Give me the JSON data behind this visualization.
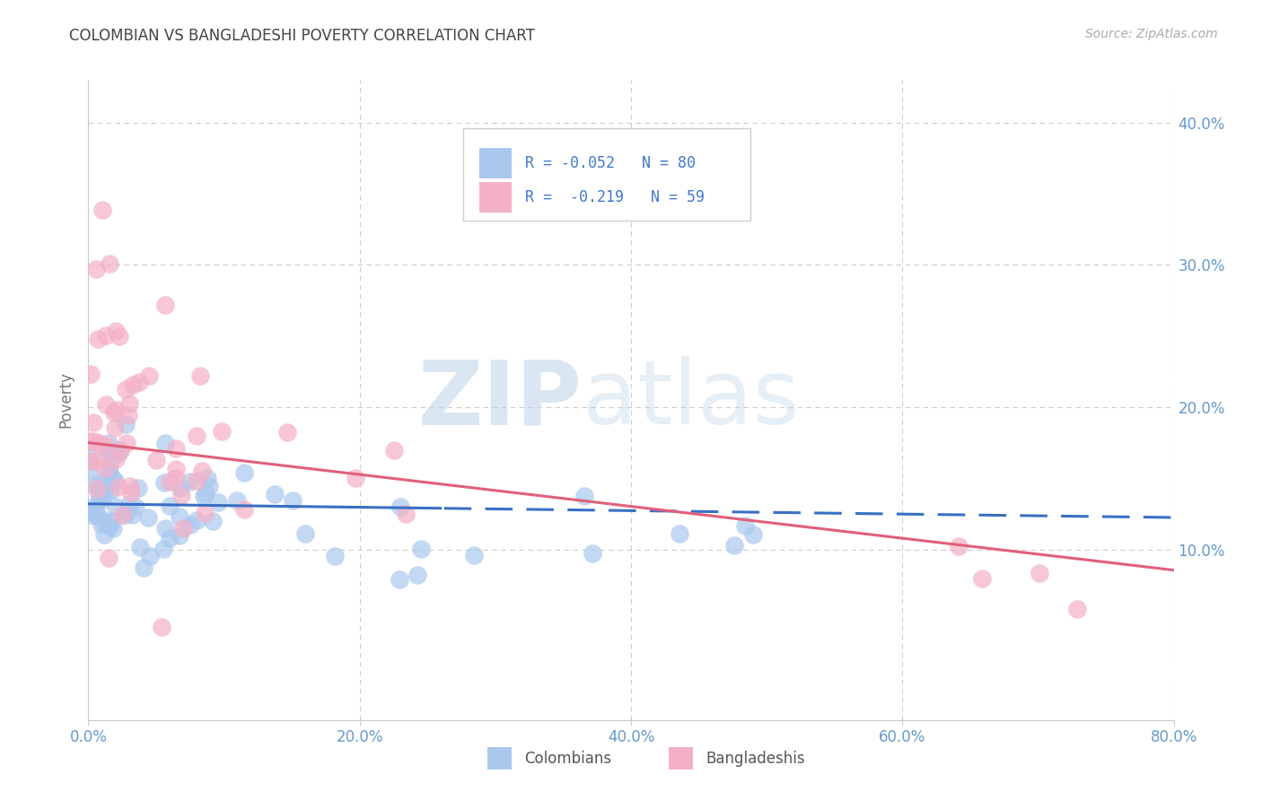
{
  "title": "COLOMBIAN VS BANGLADESHI POVERTY CORRELATION CHART",
  "source": "Source: ZipAtlas.com",
  "ylabel": "Poverty",
  "xlim": [
    0.0,
    0.8
  ],
  "ylim": [
    -0.02,
    0.43
  ],
  "yticks": [
    0.1,
    0.2,
    0.3,
    0.4
  ],
  "xticks": [
    0.0,
    0.2,
    0.4,
    0.6,
    0.8
  ],
  "xtick_labels": [
    "0.0%",
    "20.0%",
    "40.0%",
    "60.0%",
    "80.0%"
  ],
  "ytick_labels": [
    "10.0%",
    "20.0%",
    "30.0%",
    "40.0%"
  ],
  "colombians": {
    "R": -0.052,
    "N": 80,
    "color": "#aac8ee",
    "line_color": "#3a6fc4",
    "label": "Colombians"
  },
  "bangladeshis": {
    "R": -0.219,
    "N": 59,
    "color": "#f4b0c8",
    "line_color": "#e0607a",
    "label": "Bangladeshis"
  },
  "col_intercept": 0.132,
  "col_slope": -0.018,
  "ban_intercept": 0.175,
  "ban_slope": -0.115,
  "watermark_zip": "ZIP",
  "watermark_atlas": "atlas",
  "background_color": "#ffffff",
  "grid_color": "#cccccc",
  "tick_color": "#6699cc",
  "title_color": "#444444",
  "source_color": "#aaaaaa",
  "legend_text_color": "#4477cc"
}
